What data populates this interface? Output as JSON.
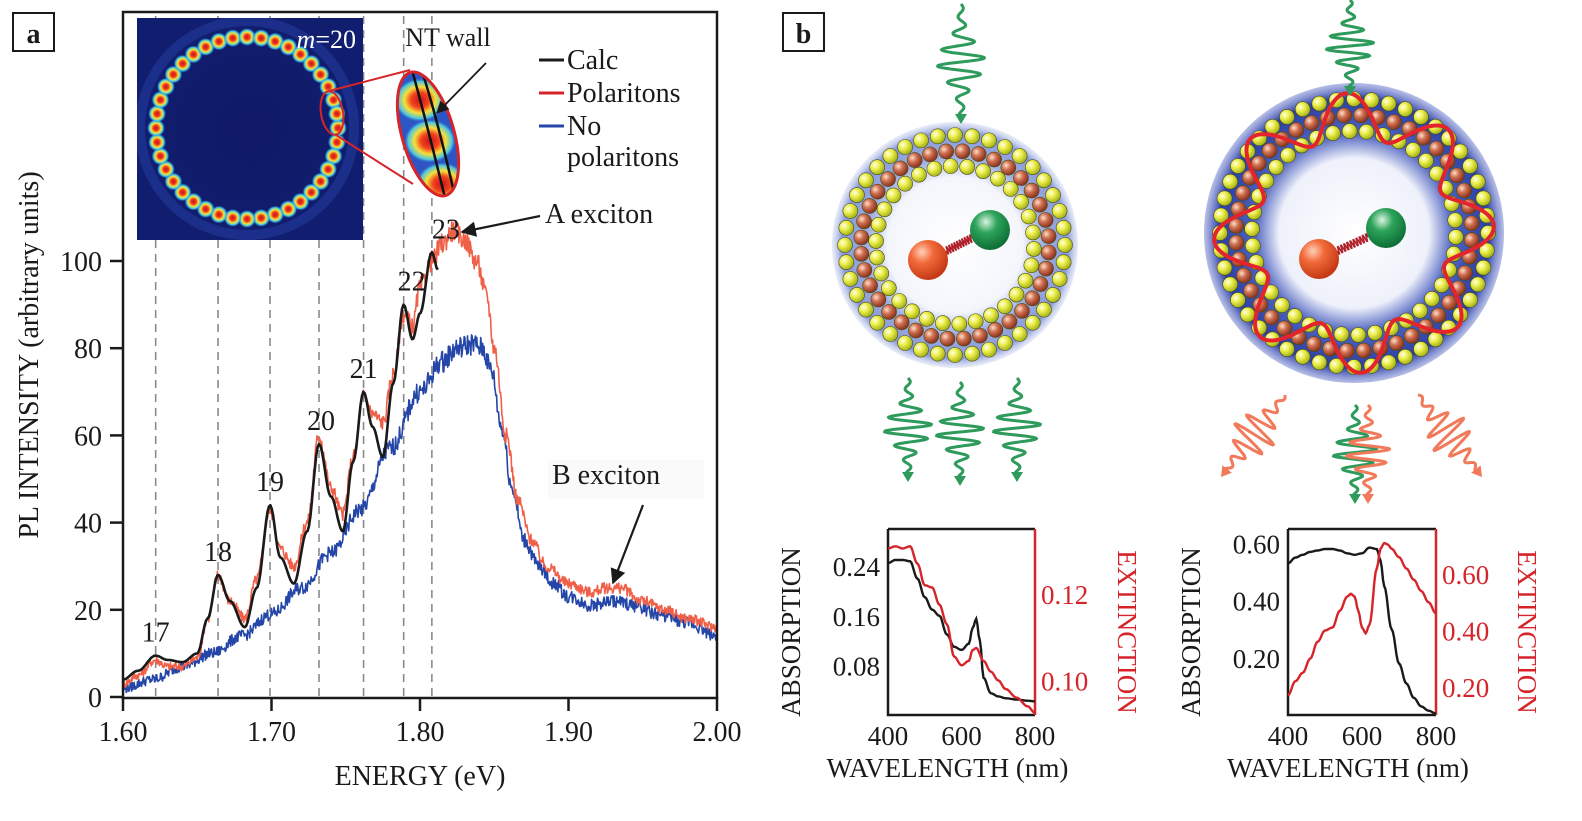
{
  "panels": {
    "a": {
      "label": "a"
    },
    "b": {
      "label": "b"
    }
  },
  "colors": {
    "calc": "#1a1a1a",
    "polaritons": "#f06048",
    "no_polaritons": "#2446a8",
    "extinction": "#d6242b",
    "absorption": "#1a1a1a",
    "green_wave": "#2e9a5c",
    "orange_wave": "#f07a5a"
  },
  "inset": {
    "mode_label_italic": "m",
    "mode_label_rest": "=20",
    "zoom_label": "NT wall"
  },
  "annotations": {
    "a_exciton": "A exciton",
    "b_exciton": "B exciton"
  },
  "chart_data": [
    {
      "id": "panel-a",
      "type": "line",
      "title": "",
      "xlabel": "ENERGY (eV)",
      "ylabel": "PL INTENSITY (arbitrary units)",
      "xlim": [
        1.6,
        2.0
      ],
      "ylim": [
        0,
        100
      ],
      "xticks": [
        1.6,
        1.7,
        1.8,
        1.9,
        2.0
      ],
      "xtick_labels": [
        "1.60",
        "1.70",
        "1.80",
        "1.90",
        "2.00"
      ],
      "yticks": [
        0,
        20,
        40,
        60,
        80,
        100
      ],
      "ytick_labels": [
        "0",
        "20",
        "40",
        "60",
        "80",
        "100"
      ],
      "legend": {
        "placement": "top-right",
        "entries": [
          "Calc",
          "Polaritons",
          "No",
          "polaritons"
        ]
      },
      "mode_lines": [
        {
          "label": "17",
          "x": 1.622
        },
        {
          "label": "18",
          "x": 1.664
        },
        {
          "label": "19",
          "x": 1.699
        },
        {
          "label": "20",
          "x": 1.732
        },
        {
          "label": "21",
          "x": 1.762
        },
        {
          "label": "22",
          "x": 1.789
        },
        {
          "label": "23",
          "x": 1.808
        }
      ],
      "series": [
        {
          "name": "Calc",
          "x": [
            1.6,
            1.61,
            1.622,
            1.63,
            1.64,
            1.65,
            1.657,
            1.664,
            1.672,
            1.682,
            1.69,
            1.699,
            1.706,
            1.715,
            1.724,
            1.732,
            1.74,
            1.748,
            1.755,
            1.762,
            1.768,
            1.775,
            1.782,
            1.789,
            1.795,
            1.8,
            1.808,
            1.812
          ],
          "y": [
            4,
            6,
            9.5,
            8.5,
            8,
            10,
            18,
            28,
            22,
            16,
            25,
            44,
            32,
            26,
            38,
            58,
            46,
            38,
            54,
            70,
            62,
            55,
            72,
            90,
            82,
            88,
            102,
            98
          ]
        },
        {
          "name": "Polaritons",
          "x": [
            1.6,
            1.61,
            1.622,
            1.63,
            1.64,
            1.65,
            1.657,
            1.664,
            1.672,
            1.682,
            1.69,
            1.699,
            1.706,
            1.715,
            1.724,
            1.732,
            1.74,
            1.748,
            1.755,
            1.762,
            1.768,
            1.775,
            1.782,
            1.789,
            1.795,
            1.8,
            1.808,
            1.815,
            1.822,
            1.83,
            1.838,
            1.845,
            1.85,
            1.858,
            1.866,
            1.875,
            1.885,
            1.9,
            1.915,
            1.925,
            1.935,
            1.95,
            1.965,
            1.98,
            2.0
          ],
          "y": [
            3,
            5,
            8.5,
            7,
            7,
            9,
            18,
            28,
            22,
            18,
            27,
            43,
            34,
            30,
            40,
            60,
            48,
            42,
            55,
            69,
            65,
            63,
            74,
            88,
            85,
            94,
            100,
            104,
            107,
            105,
            100,
            92,
            80,
            60,
            45,
            36,
            30,
            26,
            24,
            25,
            25,
            22,
            20,
            18,
            16
          ]
        },
        {
          "name": "No polaritons",
          "x": [
            1.6,
            1.62,
            1.64,
            1.66,
            1.68,
            1.7,
            1.72,
            1.74,
            1.76,
            1.78,
            1.8,
            1.815,
            1.825,
            1.835,
            1.842,
            1.848,
            1.855,
            1.862,
            1.87,
            1.88,
            1.89,
            1.9,
            1.915,
            1.93,
            1.945,
            1.96,
            1.98,
            2.0
          ],
          "y": [
            2,
            4,
            7,
            10,
            14,
            19,
            25,
            33,
            43,
            57,
            70,
            77,
            80,
            81,
            80,
            75,
            62,
            48,
            36,
            30,
            26,
            23,
            21,
            22,
            21,
            19,
            17,
            14
          ]
        }
      ],
      "annotations": [
        {
          "text": "A exciton",
          "x": 1.822,
          "y": 107
        },
        {
          "text": "B exciton",
          "x": 1.925,
          "y": 25
        }
      ]
    },
    {
      "id": "panel-b-left",
      "type": "line",
      "title": "",
      "xlabel": "WAVELENGTH (nm)",
      "ylabel": "ABSORPTION",
      "y2label": "EXTINCTION",
      "xlim": [
        400,
        800
      ],
      "ylim": [
        0.0,
        0.3
      ],
      "y2lim": [
        0.092,
        0.135
      ],
      "xticks": [
        400,
        600,
        800
      ],
      "xtick_labels": [
        "400",
        "600",
        "800"
      ],
      "yticks": [
        0.08,
        0.16,
        0.24
      ],
      "ytick_labels": [
        "0.08",
        "0.16",
        "0.24"
      ],
      "y2ticks": [
        0.1,
        0.12
      ],
      "y2tick_labels": [
        "0.10",
        "0.12"
      ],
      "series": [
        {
          "name": "Absorption",
          "axis": "left",
          "x": [
            400,
            420,
            440,
            460,
            480,
            500,
            520,
            540,
            560,
            580,
            600,
            620,
            630,
            640,
            650,
            660,
            680,
            700,
            720,
            750,
            780,
            800
          ],
          "y": [
            0.245,
            0.25,
            0.25,
            0.248,
            0.22,
            0.19,
            0.17,
            0.16,
            0.13,
            0.11,
            0.105,
            0.115,
            0.14,
            0.155,
            0.12,
            0.06,
            0.035,
            0.03,
            0.027,
            0.025,
            0.023,
            0.022
          ]
        },
        {
          "name": "Extinction",
          "axis": "right",
          "x": [
            400,
            420,
            440,
            460,
            480,
            500,
            520,
            540,
            560,
            580,
            600,
            620,
            630,
            640,
            660,
            680,
            700,
            720,
            750,
            780,
            800
          ],
          "y": [
            0.1305,
            0.131,
            0.1305,
            0.131,
            0.127,
            0.122,
            0.1215,
            0.1175,
            0.113,
            0.1055,
            0.1035,
            0.1045,
            0.107,
            0.1075,
            0.1045,
            0.102,
            0.1,
            0.098,
            0.096,
            0.094,
            0.0925
          ]
        }
      ]
    },
    {
      "id": "panel-b-right",
      "type": "line",
      "title": "",
      "xlabel": "WAVELENGTH (nm)",
      "ylabel": "ABSORPTION",
      "y2label": "EXTINCTION",
      "xlim": [
        400,
        800
      ],
      "ylim": [
        0.0,
        0.65
      ],
      "y2lim": [
        0.1,
        0.76
      ],
      "xticks": [
        400,
        600,
        800
      ],
      "xtick_labels": [
        "400",
        "600",
        "800"
      ],
      "yticks": [
        0.2,
        0.4,
        0.6
      ],
      "ytick_labels": [
        "0.20",
        "0.40",
        "0.60"
      ],
      "y2ticks": [
        0.2,
        0.4,
        0.6
      ],
      "y2tick_labels": [
        "0.20",
        "0.40",
        "0.60"
      ],
      "series": [
        {
          "name": "Absorption",
          "axis": "left",
          "x": [
            400,
            420,
            440,
            460,
            480,
            500,
            520,
            540,
            560,
            580,
            600,
            620,
            640,
            650,
            660,
            680,
            700,
            720,
            740,
            760,
            780,
            800
          ],
          "y": [
            0.53,
            0.55,
            0.56,
            0.57,
            0.575,
            0.58,
            0.58,
            0.575,
            0.565,
            0.56,
            0.565,
            0.585,
            0.58,
            0.54,
            0.45,
            0.3,
            0.18,
            0.11,
            0.06,
            0.03,
            0.015,
            0.005
          ]
        },
        {
          "name": "Extinction",
          "axis": "right",
          "x": [
            400,
            420,
            440,
            460,
            480,
            500,
            520,
            540,
            560,
            570,
            580,
            590,
            600,
            610,
            620,
            640,
            650,
            660,
            670,
            680,
            700,
            720,
            740,
            760,
            780,
            800
          ],
          "y": [
            0.17,
            0.22,
            0.25,
            0.3,
            0.36,
            0.4,
            0.41,
            0.47,
            0.52,
            0.53,
            0.52,
            0.47,
            0.41,
            0.39,
            0.42,
            0.62,
            0.69,
            0.71,
            0.705,
            0.69,
            0.66,
            0.62,
            0.58,
            0.54,
            0.5,
            0.46
          ]
        }
      ]
    }
  ]
}
